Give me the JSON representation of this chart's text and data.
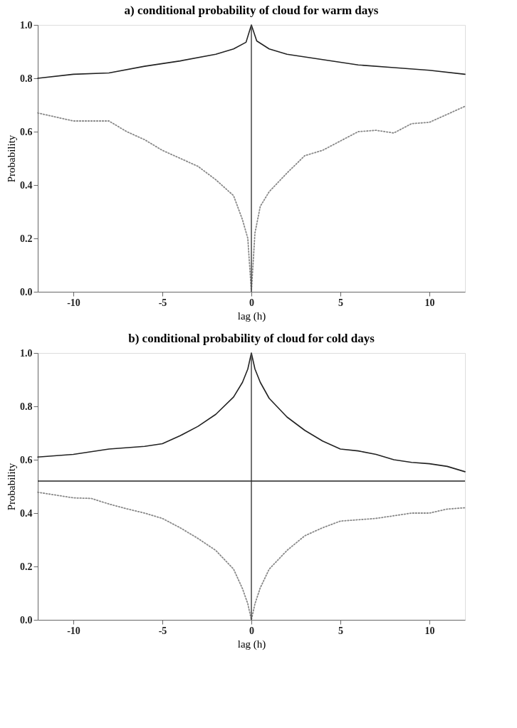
{
  "chart_data": [
    {
      "type": "line",
      "title": "a) conditional probability of cloud for warm days",
      "xlabel": "lag (h)",
      "ylabel": "Probability",
      "xlim": [
        -12,
        12
      ],
      "xticks": [
        -10,
        -5,
        0,
        5,
        10
      ],
      "ylim": [
        0,
        1
      ],
      "yticks": [
        {
          "value": 0,
          "label": "0.0"
        },
        {
          "value": 0.2,
          "label": "0.2"
        },
        {
          "value": 0.4,
          "label": "0.4"
        },
        {
          "value": 0.6,
          "label": "0.6"
        },
        {
          "value": 0.8,
          "label": "0.8"
        },
        {
          "value": 1,
          "label": "1.0"
        }
      ],
      "grid": false,
      "marker": "none",
      "series": [
        {
          "color": "#222222",
          "line_style": "solid",
          "x": [
            -12,
            -10,
            -8,
            -6,
            -4,
            -2,
            -1,
            -0.3,
            0,
            0.3,
            1,
            2,
            4,
            6,
            8,
            10,
            12
          ],
          "values": [
            0.8,
            0.815,
            0.82,
            0.845,
            0.865,
            0.89,
            0.91,
            0.935,
            1.0,
            0.94,
            0.91,
            0.89,
            0.87,
            0.85,
            0.84,
            0.83,
            0.815
          ]
        },
        {
          "color": "#888888",
          "line_style": "dotted",
          "x": [
            -12,
            -10,
            -8,
            -7,
            -6,
            -5,
            -4,
            -3,
            -2,
            -1,
            -0.5,
            -0.2,
            0,
            0.2,
            0.5,
            1,
            2,
            3,
            4,
            5,
            6,
            7,
            8,
            9,
            10,
            11,
            12
          ],
          "values": [
            0.67,
            0.64,
            0.64,
            0.6,
            0.57,
            0.53,
            0.5,
            0.47,
            0.42,
            0.36,
            0.27,
            0.2,
            0.0,
            0.22,
            0.32,
            0.375,
            0.445,
            0.51,
            0.53,
            0.565,
            0.6,
            0.605,
            0.595,
            0.63,
            0.635,
            0.665,
            0.695
          ]
        }
      ],
      "ref_lines": [
        {
          "axis": "x",
          "value": 0,
          "color": "#444444"
        }
      ]
    },
    {
      "type": "line",
      "title": "b) conditional probability of cloud for cold days",
      "xlabel": "lag (h)",
      "ylabel": "Probability",
      "xlim": [
        -12,
        12
      ],
      "xticks": [
        -10,
        -5,
        0,
        5,
        10
      ],
      "ylim": [
        0,
        1
      ],
      "yticks": [
        {
          "value": 0,
          "label": "0.0"
        },
        {
          "value": 0.2,
          "label": "0.2"
        },
        {
          "value": 0.4,
          "label": "0.4"
        },
        {
          "value": 0.6,
          "label": "0.6"
        },
        {
          "value": 0.8,
          "label": "0.8"
        },
        {
          "value": 1,
          "label": "1.0"
        }
      ],
      "grid": false,
      "marker": "none",
      "series": [
        {
          "color": "#222222",
          "line_style": "solid",
          "x": [
            -12,
            -10,
            -8,
            -6,
            -5,
            -4,
            -3,
            -2,
            -1,
            -0.5,
            -0.2,
            0,
            0.2,
            0.5,
            1,
            2,
            3,
            4,
            5,
            6,
            7,
            8,
            9,
            10,
            11,
            12
          ],
          "values": [
            0.61,
            0.62,
            0.64,
            0.65,
            0.66,
            0.69,
            0.725,
            0.77,
            0.835,
            0.89,
            0.94,
            1.0,
            0.94,
            0.89,
            0.83,
            0.76,
            0.71,
            0.67,
            0.64,
            0.633,
            0.62,
            0.6,
            0.59,
            0.585,
            0.575,
            0.555
          ]
        },
        {
          "color": "#888888",
          "line_style": "dotted",
          "x": [
            -12,
            -10,
            -9,
            -8,
            -7,
            -6,
            -5,
            -4,
            -3,
            -2,
            -1,
            -0.5,
            -0.2,
            0,
            0.2,
            0.5,
            1,
            2,
            3,
            4,
            5,
            6,
            7,
            8,
            9,
            10,
            11,
            12
          ],
          "values": [
            0.478,
            0.457,
            0.455,
            0.434,
            0.416,
            0.4,
            0.38,
            0.345,
            0.305,
            0.26,
            0.19,
            0.117,
            0.06,
            0.0,
            0.06,
            0.12,
            0.19,
            0.26,
            0.315,
            0.345,
            0.37,
            0.375,
            0.38,
            0.39,
            0.4,
            0.4,
            0.415,
            0.42
          ]
        }
      ],
      "ref_lines": [
        {
          "axis": "x",
          "value": 0,
          "color": "#444444"
        },
        {
          "axis": "y",
          "value": 0.52,
          "color": "#222222"
        }
      ]
    }
  ]
}
